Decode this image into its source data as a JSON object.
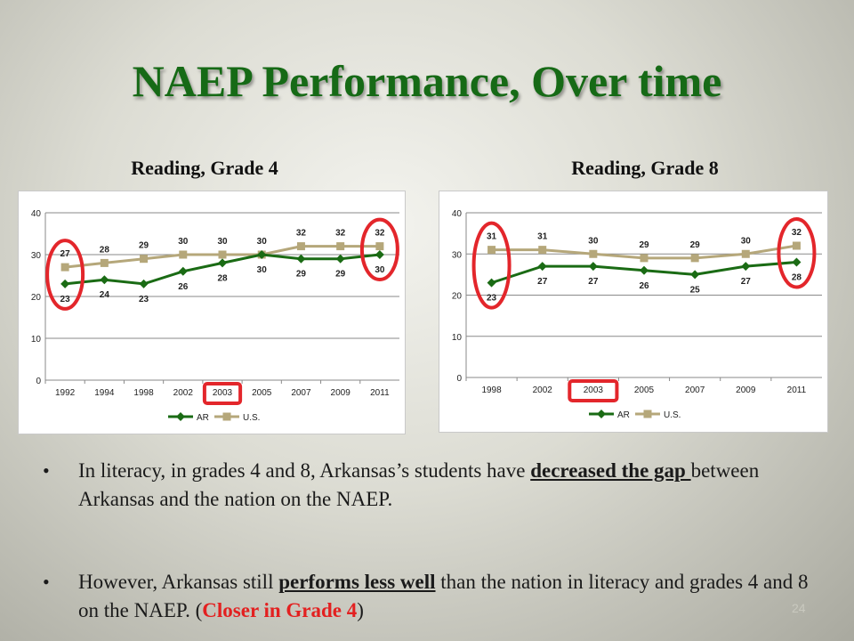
{
  "slide": {
    "title": "NAEP Performance, Over time",
    "slide_number": "24"
  },
  "bullets": [
    {
      "text_before": "In literacy, in grades 4 and 8, Arkansas’s students have ",
      "underline": "decreased the gap ",
      "text_after": "between Arkansas and the nation on the NAEP."
    },
    {
      "text_before": "However, Arkansas still ",
      "underline": "performs less well",
      "text_middle": " than the nation in literacy and grades 4 and 8 on the NAEP. (",
      "highlight": "Closer in Grade 4",
      "text_after": ")"
    }
  ],
  "colors": {
    "ar_series": "#1a6b14",
    "us_series": "#b5a77a",
    "highlight_ring": "#e3262b",
    "title": "#166a16"
  },
  "chart_data": [
    {
      "type": "line",
      "title": "Reading, Grade 4",
      "categories": [
        "1992",
        "1994",
        "1998",
        "2002",
        "2003",
        "2005",
        "2007",
        "2009",
        "2011"
      ],
      "ylim": [
        0,
        40
      ],
      "yticks": [
        0,
        10,
        20,
        30,
        40
      ],
      "grid": true,
      "legend": "bottom",
      "series": [
        {
          "name": "AR",
          "values": [
            23,
            24,
            23,
            26,
            28,
            30,
            29,
            29,
            30
          ],
          "labels": [
            "23",
            "24",
            "23",
            "26",
            "28",
            "30",
            "29",
            "29",
            "30"
          ],
          "label_pos": "below"
        },
        {
          "name": "U.S.",
          "values": [
            27,
            28,
            29,
            30,
            30,
            30,
            32,
            32,
            32
          ],
          "labels": [
            "27",
            "28",
            "29",
            "30",
            "30",
            "30",
            "32",
            "32",
            "32"
          ],
          "label_pos": "above"
        }
      ],
      "highlighted_category": "2003",
      "circled_categories": [
        "1992",
        "2011"
      ]
    },
    {
      "type": "line",
      "title": "Reading, Grade 8",
      "categories": [
        "1998",
        "2002",
        "2003",
        "2005",
        "2007",
        "2009",
        "2011"
      ],
      "ylim": [
        0,
        40
      ],
      "yticks": [
        0,
        10,
        20,
        30,
        40
      ],
      "grid": true,
      "legend": "bottom",
      "series": [
        {
          "name": "AR",
          "values": [
            23,
            27,
            27,
            26,
            25,
            27,
            28
          ],
          "labels": [
            "23",
            "27",
            "27",
            "26",
            "25",
            "27",
            "28"
          ],
          "label_pos": "below"
        },
        {
          "name": "U.S.",
          "values": [
            31,
            31,
            30,
            29,
            29,
            30,
            32
          ],
          "labels": [
            "31",
            "31",
            "30",
            "29",
            "29",
            "30",
            "32"
          ],
          "label_pos": "above"
        }
      ],
      "highlighted_category": "2003",
      "circled_categories": [
        "1998",
        "2011"
      ]
    }
  ]
}
